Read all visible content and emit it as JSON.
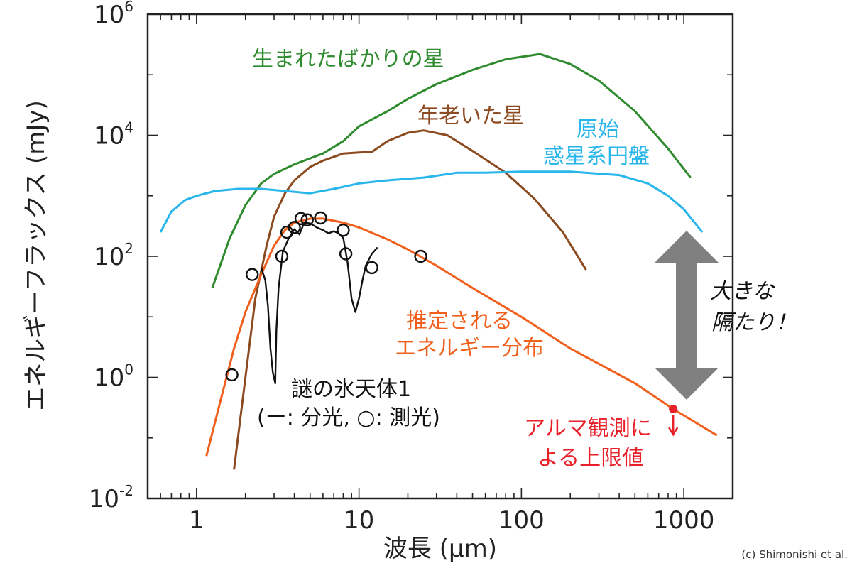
{
  "chart_data": {
    "type": "line",
    "xlabel": "波長 (μm)",
    "ylabel": "エネルギーフラックス (mJy)",
    "xscale": "log",
    "yscale": "log",
    "xlim": [
      0.5,
      2000
    ],
    "ylim": [
      0.01,
      1000000
    ],
    "x_ticks": [
      {
        "value": 1,
        "label": "1"
      },
      {
        "value": 10,
        "label": "10"
      },
      {
        "value": 100,
        "label": "100"
      },
      {
        "value": 1000,
        "label": "1000"
      }
    ],
    "y_ticks": [
      {
        "value": 0.01,
        "base": "10",
        "exp": "-2"
      },
      {
        "value": 1,
        "base": "10",
        "exp": "0"
      },
      {
        "value": 100,
        "base": "10",
        "exp": "2"
      },
      {
        "value": 10000,
        "base": "10",
        "exp": "4"
      },
      {
        "value": 1000000,
        "base": "10",
        "exp": "6"
      }
    ],
    "grid": false,
    "series": [
      {
        "name": "生まれたばかりの星",
        "color": "#2e8b2e",
        "points": [
          [
            1.25,
            30
          ],
          [
            1.6,
            200
          ],
          [
            2.0,
            700
          ],
          [
            2.5,
            1600
          ],
          [
            3.0,
            2300
          ],
          [
            4.0,
            3300
          ],
          [
            6.0,
            5000
          ],
          [
            8.0,
            8000
          ],
          [
            10,
            14000
          ],
          [
            15,
            25000
          ],
          [
            20,
            40000
          ],
          [
            30,
            70000
          ],
          [
            50,
            120000
          ],
          [
            80,
            180000
          ],
          [
            130,
            220000
          ],
          [
            200,
            150000
          ],
          [
            300,
            80000
          ],
          [
            500,
            25000
          ],
          [
            800,
            6000
          ],
          [
            1100,
            2000
          ]
        ]
      },
      {
        "name": "年老いた星",
        "color": "#8b4a1f",
        "points": [
          [
            1.7,
            0.03
          ],
          [
            2.0,
            1
          ],
          [
            2.3,
            20
          ],
          [
            2.7,
            150
          ],
          [
            3.0,
            450
          ],
          [
            3.5,
            1100
          ],
          [
            4.0,
            1800
          ],
          [
            5.0,
            3000
          ],
          [
            6.0,
            3800
          ],
          [
            8.0,
            5000
          ],
          [
            10,
            5200
          ],
          [
            12,
            5300
          ],
          [
            15,
            8000
          ],
          [
            20,
            11000
          ],
          [
            25,
            12000
          ],
          [
            35,
            10000
          ],
          [
            50,
            5500
          ],
          [
            80,
            2400
          ],
          [
            120,
            900
          ],
          [
            180,
            250
          ],
          [
            250,
            60
          ]
        ]
      },
      {
        "name": "原始惑星系円盤",
        "color": "#29b6ea",
        "points": [
          [
            0.6,
            250
          ],
          [
            0.7,
            550
          ],
          [
            0.85,
            850
          ],
          [
            1.0,
            1000
          ],
          [
            1.3,
            1200
          ],
          [
            1.8,
            1300
          ],
          [
            2.5,
            1300
          ],
          [
            3.5,
            1200
          ],
          [
            5.0,
            1100
          ],
          [
            7.0,
            1300
          ],
          [
            10,
            1600
          ],
          [
            15,
            1800
          ],
          [
            25,
            2000
          ],
          [
            40,
            2400
          ],
          [
            60,
            2400
          ],
          [
            100,
            2500
          ],
          [
            200,
            2500
          ],
          [
            400,
            2200
          ],
          [
            600,
            1600
          ],
          [
            800,
            1000
          ],
          [
            1000,
            600
          ],
          [
            1300,
            250
          ]
        ]
      },
      {
        "name": "推定されるエネルギー分布",
        "color": "#f0601c",
        "points": [
          [
            1.15,
            0.05
          ],
          [
            1.4,
            0.4
          ],
          [
            1.7,
            3
          ],
          [
            2.0,
            12
          ],
          [
            2.5,
            50
          ],
          [
            3.0,
            150
          ],
          [
            3.5,
            270
          ],
          [
            4.0,
            360
          ],
          [
            5.0,
            420
          ],
          [
            6.0,
            420
          ],
          [
            8.0,
            360
          ],
          [
            10,
            300
          ],
          [
            15,
            190
          ],
          [
            20,
            130
          ],
          [
            30,
            70
          ],
          [
            50,
            30
          ],
          [
            100,
            10
          ],
          [
            200,
            3
          ],
          [
            500,
            0.8
          ],
          [
            860,
            0.3
          ],
          [
            1600,
            0.11
          ]
        ]
      },
      {
        "name": "謎の氷天体1",
        "color": "#111111",
        "points": [
          [
            2.5,
            65
          ],
          [
            2.65,
            40
          ],
          [
            2.75,
            15
          ],
          [
            2.85,
            3
          ],
          [
            2.95,
            1.2
          ],
          [
            3.05,
            0.8
          ],
          [
            3.1,
            6
          ],
          [
            3.2,
            30
          ],
          [
            3.4,
            120
          ],
          [
            3.7,
            200
          ],
          [
            4.0,
            280
          ],
          [
            4.3,
            230
          ],
          [
            4.6,
            360
          ],
          [
            5.0,
            350
          ],
          [
            5.5,
            300
          ],
          [
            6.0,
            270
          ],
          [
            6.5,
            240
          ],
          [
            7.0,
            260
          ],
          [
            7.5,
            240
          ],
          [
            8.0,
            200
          ],
          [
            8.5,
            80
          ],
          [
            9.0,
            20
          ],
          [
            9.5,
            12
          ],
          [
            10.0,
            20
          ],
          [
            10.5,
            40
          ],
          [
            11.0,
            70
          ],
          [
            12.0,
            110
          ],
          [
            13.0,
            140
          ]
        ]
      }
    ],
    "photometry": {
      "name": "測光",
      "points": [
        [
          1.65,
          1.1
        ],
        [
          2.2,
          50
        ],
        [
          3.35,
          100
        ],
        [
          3.6,
          250
        ],
        [
          4.0,
          300
        ],
        [
          4.4,
          420
        ],
        [
          4.8,
          400
        ],
        [
          5.8,
          430
        ],
        [
          8.0,
          270
        ],
        [
          8.3,
          110
        ],
        [
          12.0,
          65
        ],
        [
          24.0,
          100
        ]
      ]
    },
    "upper_limit": {
      "x": 860,
      "y": 0.3,
      "color": "#e8202a"
    }
  },
  "annotations": {
    "young_star": {
      "text": "生まれたばかりの星",
      "color": "#2e8b2e"
    },
    "old_star": {
      "text": "年老いた星",
      "color": "#8b4a1f"
    },
    "disk_line1": {
      "text": "原始",
      "color": "#29b6ea"
    },
    "disk_line2": {
      "text": "惑星系円盤",
      "color": "#29b6ea"
    },
    "estimated_line1": {
      "text": "推定される",
      "color": "#f0601c"
    },
    "estimated_line2": {
      "text": "エネルギー分布",
      "color": "#f0601c"
    },
    "object_line1": {
      "text": "謎の氷天体1",
      "color": "#111111"
    },
    "object_line2": {
      "text": "(ー: 分光, ○: 測光)",
      "color": "#111111"
    },
    "gap_line1": {
      "text": "大きな",
      "color": "#111111"
    },
    "gap_line2": {
      "text": "隔たり！",
      "color": "#111111"
    },
    "alma_line1": {
      "text": "アルマ観測に",
      "color": "#e8202a"
    },
    "alma_line2": {
      "text": "よる上限値",
      "color": "#e8202a"
    },
    "arrow_color": "#808080"
  },
  "credit": "(c) Shimonishi et al."
}
